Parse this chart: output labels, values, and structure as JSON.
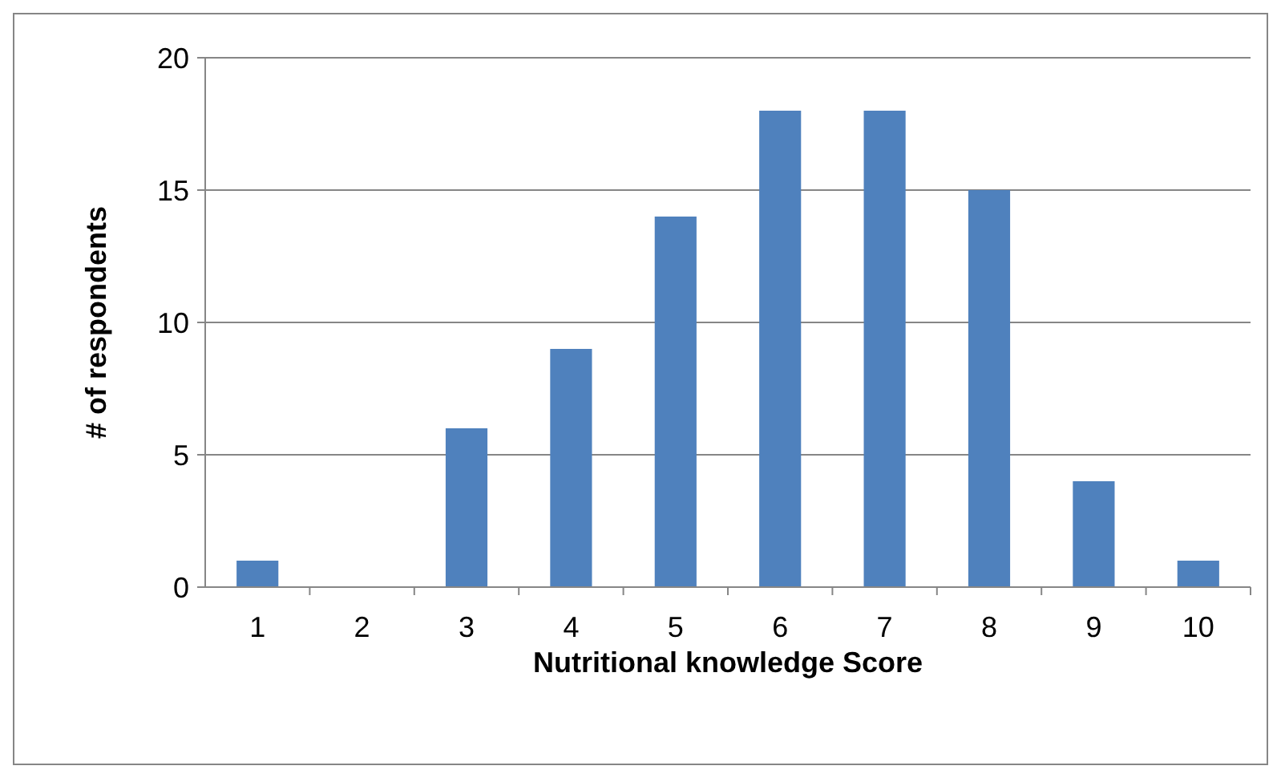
{
  "chart_data": {
    "type": "bar",
    "xlabel": "Nutritional knowledge Score",
    "ylabel": "# of respondents",
    "categories": [
      "1",
      "2",
      "3",
      "4",
      "5",
      "6",
      "7",
      "8",
      "9",
      "10"
    ],
    "values": [
      1,
      0,
      6,
      9,
      14,
      18,
      18,
      15,
      4,
      1
    ],
    "color": "#4f81bd",
    "ylim": [
      0,
      20
    ],
    "yticks": [
      0,
      5,
      10,
      15,
      20
    ],
    "grid": "y"
  }
}
